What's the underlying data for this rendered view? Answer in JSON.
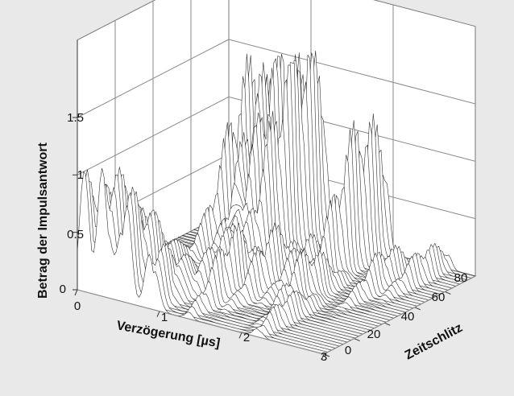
{
  "chart_data": {
    "type": "3d-waterfall",
    "x_axis": {
      "label": "Verzögerung [µs]",
      "ticks": [
        "0",
        "1",
        "2",
        "3"
      ],
      "range": [
        0,
        3
      ]
    },
    "y_axis": {
      "label": "Zeitschlitz",
      "ticks": [
        "0",
        "20",
        "40",
        "60",
        "80"
      ],
      "range": [
        0,
        100
      ]
    },
    "z_axis": {
      "label": "Betrag der Impulsantwort",
      "ticks": [
        "0",
        "0.5",
        "1",
        "1.5"
      ],
      "range": [
        0,
        1.5
      ]
    },
    "grid": true,
    "surface_color": "#ffffff",
    "line_color": "#333333",
    "peaks_front_slot": [
      {
        "delay": 0.08,
        "magnitude": 0.85
      },
      {
        "delay": 0.32,
        "magnitude": 0.95
      },
      {
        "delay": 0.58,
        "magnitude": 0.8
      },
      {
        "delay": 0.9,
        "magnitude": 0.45
      }
    ],
    "peaks_back_slots": [
      {
        "delay": 0.55,
        "magnitude": 1.3
      },
      {
        "delay": 0.75,
        "magnitude": 1.2
      },
      {
        "delay": 0.95,
        "magnitude": 1.45
      },
      {
        "delay": 1.15,
        "magnitude": 1.6
      },
      {
        "delay": 1.9,
        "magnitude": 1.1
      }
    ]
  }
}
